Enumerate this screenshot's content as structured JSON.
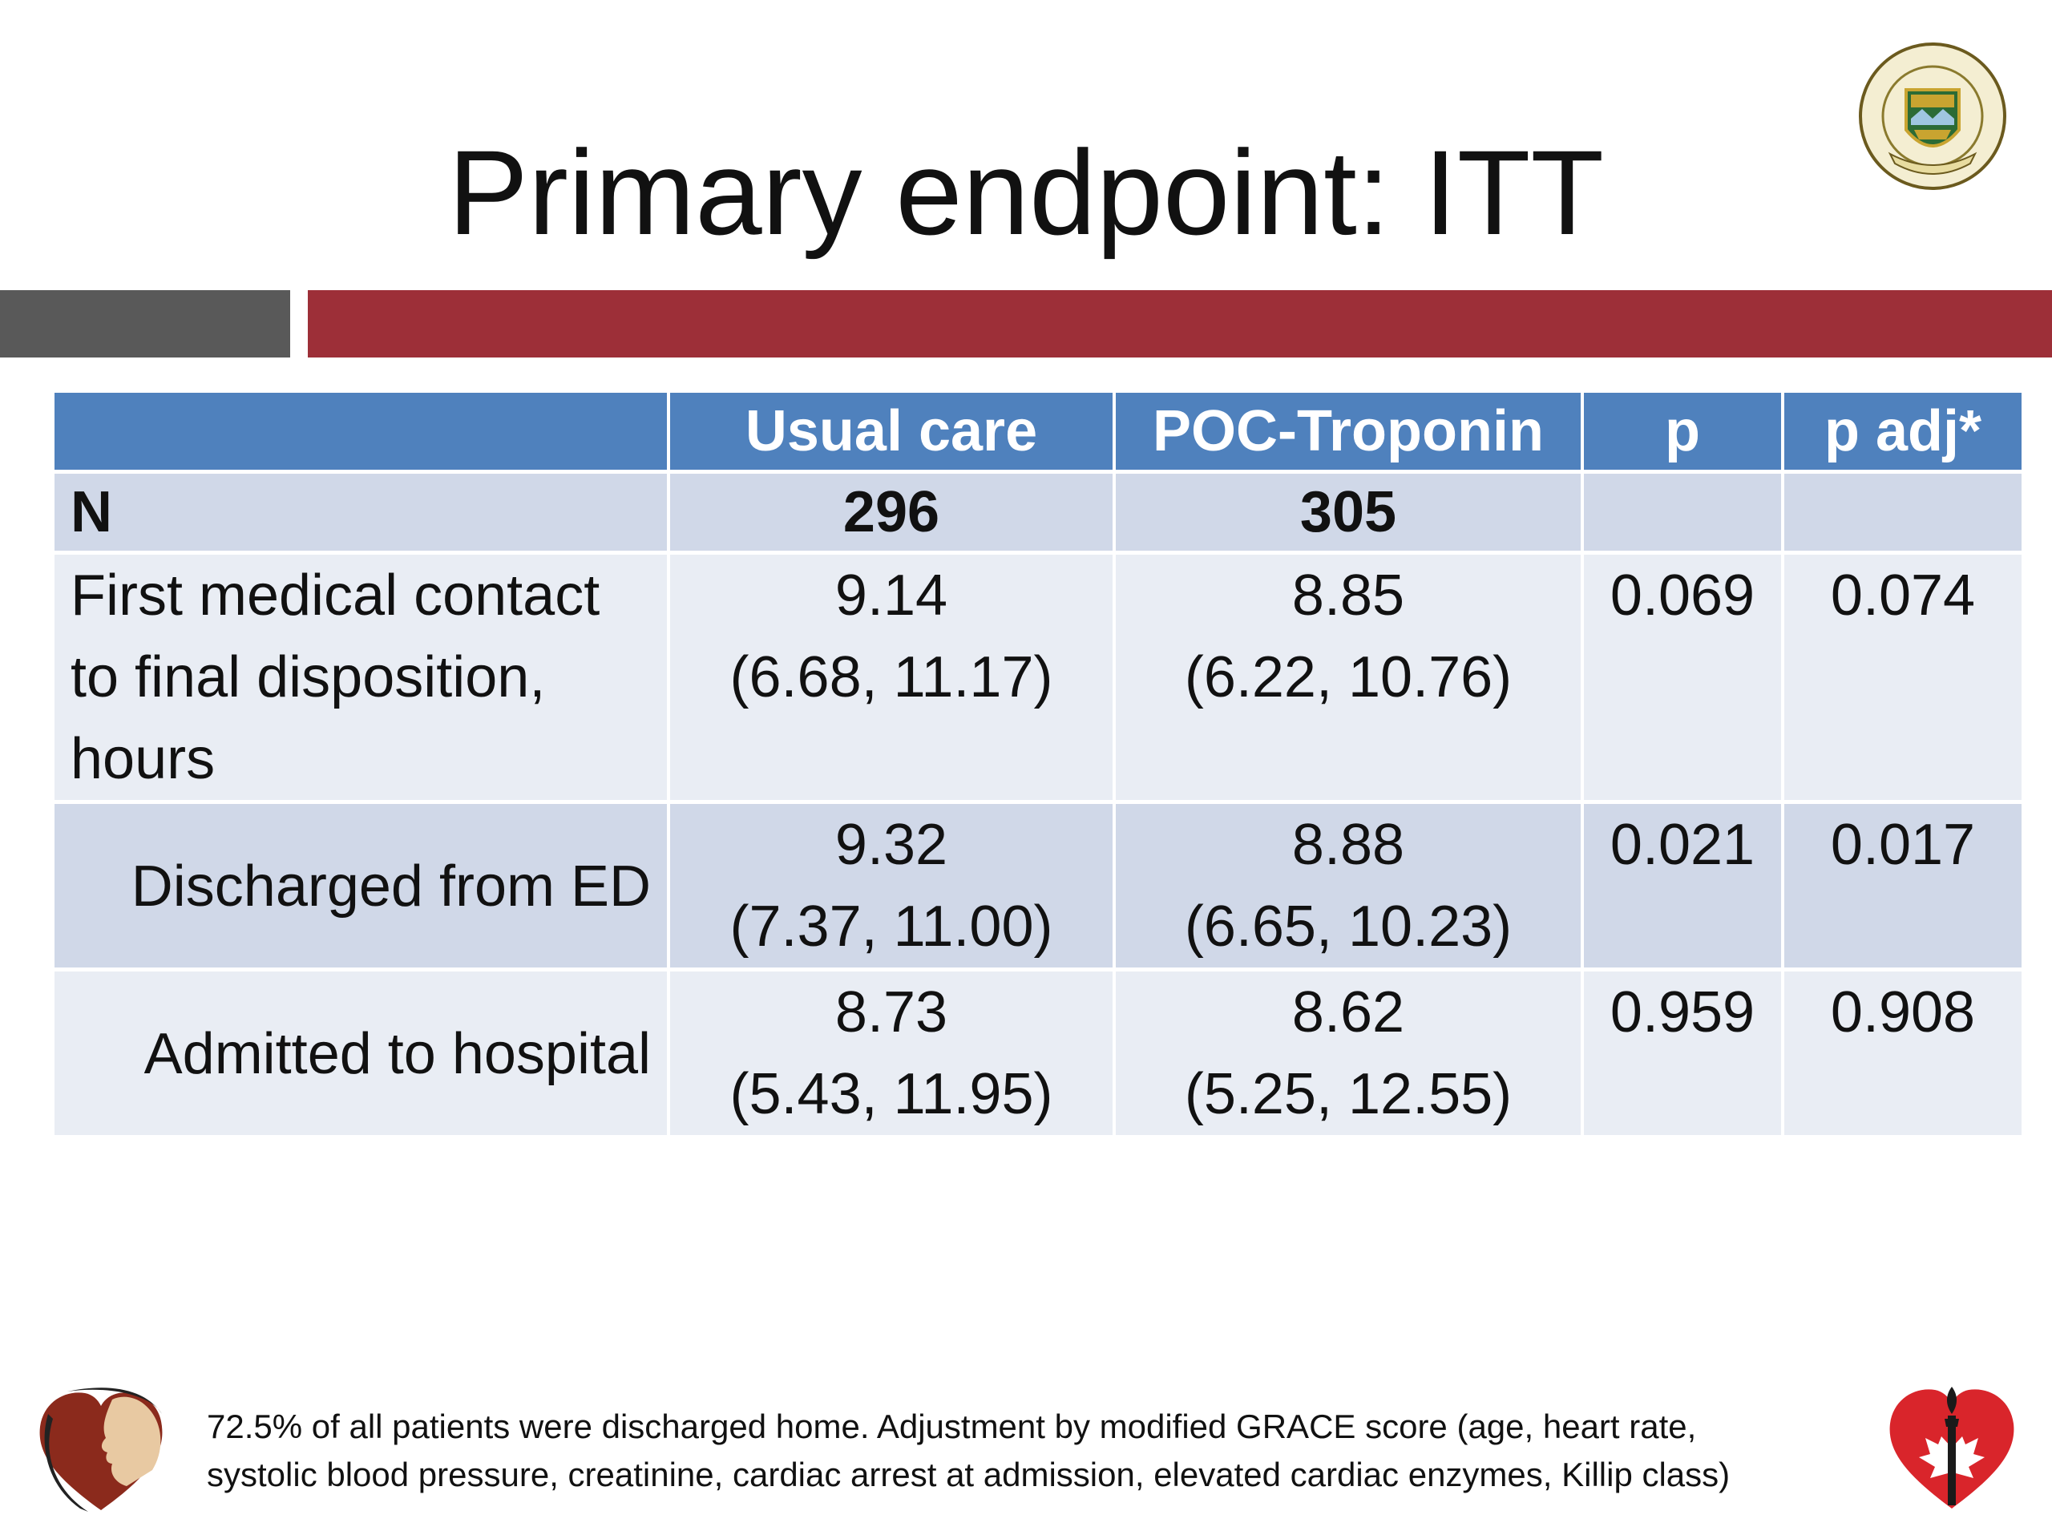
{
  "slide": {
    "title": "Primary endpoint: ITT"
  },
  "colors": {
    "header_blue": "#4f81bd",
    "row_dark": "#d0d8e8",
    "row_light": "#e9edf4",
    "accent_red": "#9d2f38",
    "accent_gray": "#595959"
  },
  "table": {
    "headers": [
      "",
      "Usual care",
      "POC-Troponin",
      "p",
      "p adj*"
    ],
    "n_row": {
      "label": "N",
      "usual_care": "296",
      "poc_troponin": "305",
      "p": "",
      "p_adj": ""
    },
    "rows": [
      {
        "label_lines": [
          "First medical contact",
          "to final disposition,",
          "hours"
        ],
        "usual_care": [
          "9.14",
          "(6.68, 11.17)"
        ],
        "poc_troponin": [
          "8.85",
          "(6.22, 10.76)"
        ],
        "p": "0.069",
        "p_adj": "0.074"
      },
      {
        "label": "Discharged from ED",
        "usual_care": [
          "9.32",
          "(7.37, 11.00)"
        ],
        "poc_troponin": [
          "8.88",
          "(6.65, 10.23)"
        ],
        "p": "0.021",
        "p_adj": "0.017"
      },
      {
        "label": "Admitted to hospital",
        "usual_care": [
          "8.73",
          "(5.43, 11.95)"
        ],
        "poc_troponin": [
          "8.62",
          "(5.25, 12.55)"
        ],
        "p": "0.959",
        "p_adj": "0.908"
      }
    ]
  },
  "footnote": {
    "line1": "72.5% of all patients were discharged home. Adjustment by modified GRACE score (age, heart rate,",
    "line2": "systolic blood pressure, creatinine, cardiac arrest at admission, elevated cardiac enzymes, Killip class)"
  },
  "logos": {
    "top_right": "university-of-alberta-crest",
    "bottom_left": "heart-profile-logo",
    "bottom_right": "heart-torch-maple-logo"
  }
}
